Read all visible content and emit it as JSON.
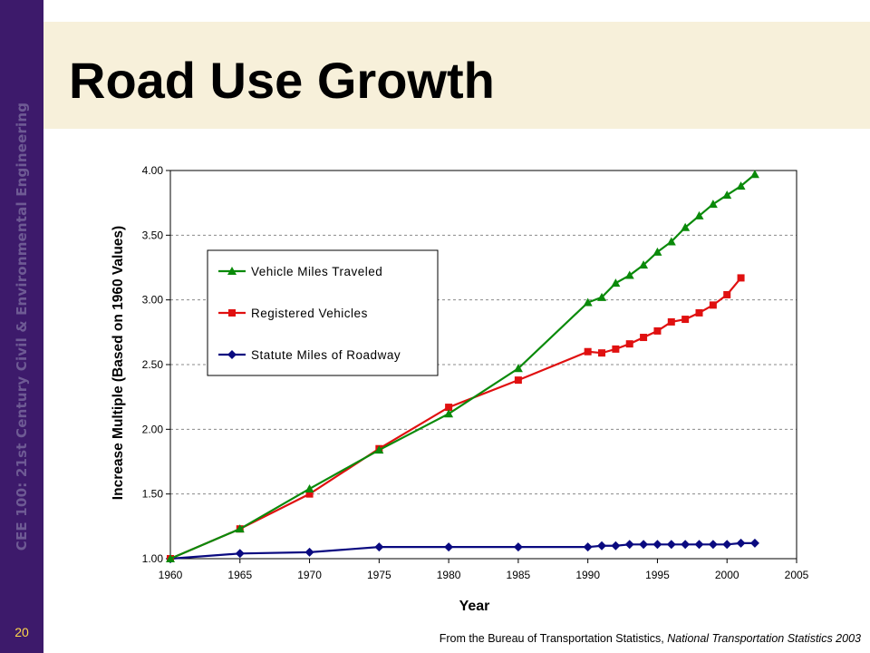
{
  "slide": {
    "title": "Road Use Growth",
    "sidebar_text": "CEE 100: 21st Century Civil & Environmental Engineering",
    "number": "20",
    "source_prefix": "From the Bureau of Transportation Statistics,",
    "source_title": "National Transportation Statistics 2003"
  },
  "colors": {
    "sidebar": "#3d1a6b",
    "title_band": "#f7f0da",
    "slide_number": "#ffd84a"
  },
  "chart_data": {
    "type": "line",
    "xlabel": "Year",
    "ylabel": "Increase Multiple (Based on 1960 Values)",
    "xlim": [
      1960,
      2005
    ],
    "ylim": [
      1.0,
      4.0
    ],
    "x_ticks": [
      1960,
      1965,
      1970,
      1975,
      1980,
      1985,
      1990,
      1995,
      2000,
      2005
    ],
    "y_ticks": [
      "1.00",
      "1.50",
      "2.00",
      "2.50",
      "3.00",
      "3.50",
      "4.00"
    ],
    "grid": "horizontal dashed",
    "legend_position": "upper-left",
    "series": [
      {
        "name": "Vehicle Miles Traveled",
        "color": "#0a8a0a",
        "marker": "triangle",
        "points": [
          [
            1960,
            1.0
          ],
          [
            1965,
            1.23
          ],
          [
            1970,
            1.54
          ],
          [
            1975,
            1.84
          ],
          [
            1980,
            2.12
          ],
          [
            1985,
            2.47
          ],
          [
            1990,
            2.98
          ],
          [
            1991,
            3.02
          ],
          [
            1992,
            3.13
          ],
          [
            1993,
            3.19
          ],
          [
            1994,
            3.27
          ],
          [
            1995,
            3.37
          ],
          [
            1996,
            3.45
          ],
          [
            1997,
            3.56
          ],
          [
            1998,
            3.65
          ],
          [
            1999,
            3.74
          ],
          [
            2000,
            3.81
          ],
          [
            2001,
            3.88
          ],
          [
            2002,
            3.97
          ]
        ]
      },
      {
        "name": "Registered Vehicles",
        "color": "#e01010",
        "marker": "square",
        "points": [
          [
            1960,
            1.0
          ],
          [
            1965,
            1.23
          ],
          [
            1970,
            1.5
          ],
          [
            1975,
            1.85
          ],
          [
            1980,
            2.17
          ],
          [
            1985,
            2.38
          ],
          [
            1990,
            2.6
          ],
          [
            1991,
            2.59
          ],
          [
            1992,
            2.62
          ],
          [
            1993,
            2.66
          ],
          [
            1994,
            2.71
          ],
          [
            1995,
            2.76
          ],
          [
            1996,
            2.83
          ],
          [
            1997,
            2.85
          ],
          [
            1998,
            2.9
          ],
          [
            1999,
            2.96
          ],
          [
            2000,
            3.04
          ],
          [
            2001,
            3.17
          ]
        ]
      },
      {
        "name": "Statute Miles of Roadway",
        "color": "#0a0a80",
        "marker": "diamond",
        "points": [
          [
            1960,
            1.0
          ],
          [
            1965,
            1.04
          ],
          [
            1970,
            1.05
          ],
          [
            1975,
            1.09
          ],
          [
            1980,
            1.09
          ],
          [
            1985,
            1.09
          ],
          [
            1990,
            1.09
          ],
          [
            1991,
            1.1
          ],
          [
            1992,
            1.1
          ],
          [
            1993,
            1.11
          ],
          [
            1994,
            1.11
          ],
          [
            1995,
            1.11
          ],
          [
            1996,
            1.11
          ],
          [
            1997,
            1.11
          ],
          [
            1998,
            1.11
          ],
          [
            1999,
            1.11
          ],
          [
            2000,
            1.11
          ],
          [
            2001,
            1.12
          ],
          [
            2002,
            1.12
          ]
        ]
      }
    ]
  }
}
